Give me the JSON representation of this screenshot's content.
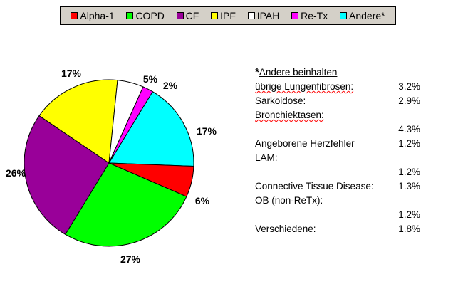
{
  "chart_data": {
    "type": "pie",
    "legend": [
      {
        "name": "Alpha-1",
        "color": "#ff0000"
      },
      {
        "name": "COPD",
        "color": "#00ff00"
      },
      {
        "name": "CF",
        "color": "#990099"
      },
      {
        "name": "IPF",
        "color": "#ffff00"
      },
      {
        "name": "IPAH",
        "color": "#ffffff"
      },
      {
        "name": "Re-Tx",
        "color": "#ff00ff"
      },
      {
        "name": "Andere*",
        "color": "#00ffff"
      }
    ],
    "slices": [
      {
        "name": "Andere*",
        "value": 17,
        "label": "17%",
        "color": "#00ffff"
      },
      {
        "name": "Alpha-1",
        "value": 6,
        "label": "6%",
        "color": "#ff0000"
      },
      {
        "name": "COPD",
        "value": 27,
        "label": "27%",
        "color": "#00ff00"
      },
      {
        "name": "CF",
        "value": 26,
        "label": "26%",
        "color": "#990099"
      },
      {
        "name": "IPF",
        "value": 17,
        "label": "17%",
        "color": "#ffff00"
      },
      {
        "name": "IPAH",
        "value": 5,
        "label": "5%",
        "color": "#ffffff"
      },
      {
        "name": "Re-Tx",
        "value": 2,
        "label": "2%",
        "color": "#ff00ff"
      }
    ],
    "legend_placement": "top"
  },
  "notes": {
    "star": "*",
    "title": "Andere beinhalten",
    "rows": [
      {
        "label": "übrige Lungenfibrosen:",
        "value": "3.2%"
      },
      {
        "label": "Sarkoidose:",
        "value": "2.9%"
      },
      {
        "label": "Bronchiektasen:",
        "value": "4.3%"
      },
      {
        "label": "Angeborene Herzfehler",
        "value": "1.2%"
      },
      {
        "label": "LAM:",
        "value": "1.2%"
      },
      {
        "label": "Connective Tissue Disease:",
        "value": "1.3%"
      },
      {
        "label": "OB (non-ReTx):",
        "value": "1.2%"
      },
      {
        "label": "Verschiedene:",
        "value": "1.8%"
      }
    ]
  }
}
